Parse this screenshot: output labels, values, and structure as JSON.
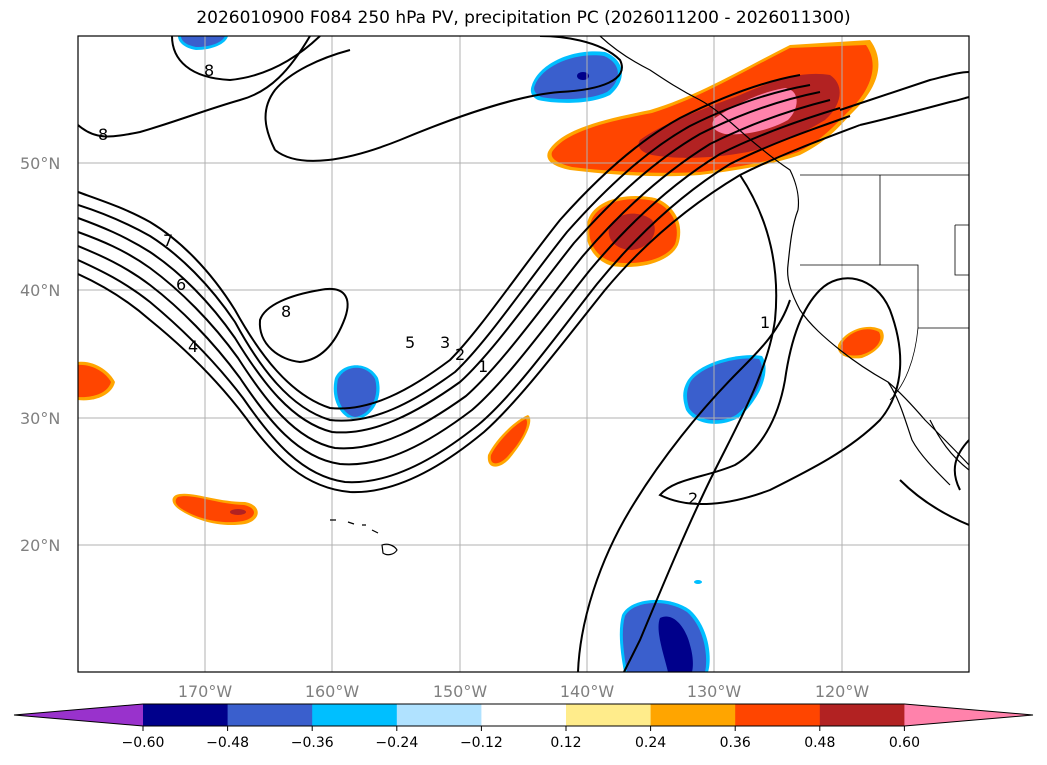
{
  "title": "2026010900 F084 250 hPa PV, precipitation PC (2026011200 - 2026011300)",
  "map": {
    "lat_labels": [
      "50°N",
      "40°N",
      "30°N",
      "20°N"
    ],
    "lon_labels": [
      "170°W",
      "160°W",
      "150°W",
      "140°W",
      "130°W",
      "120°W"
    ],
    "contour_labels": [
      "8",
      "8",
      "8",
      "7",
      "6",
      "4",
      "5",
      "3",
      "2",
      "1",
      "1",
      "2"
    ]
  },
  "colorbar": {
    "ticks": [
      "−0.60",
      "−0.48",
      "−0.36",
      "−0.24",
      "−0.12",
      "0.12",
      "0.24",
      "0.36",
      "0.48",
      "0.60"
    ],
    "colors": [
      "#9932CC",
      "#00008B",
      "#3A5FCD",
      "#00BFFF",
      "#B0E2FF",
      "#FFFFFF",
      "#FFEC8B",
      "#FFA500",
      "#FF4500",
      "#B22222",
      "#FF82AB"
    ]
  },
  "colors": {
    "strong_positive": "#B22222",
    "positive": "#FF4500",
    "weak_positive": "#FFA500",
    "extreme_positive": "#FF82AB",
    "negative": "#3A5FCD",
    "strong_negative": "#00008B",
    "weak_negative": "#00BFFF"
  }
}
